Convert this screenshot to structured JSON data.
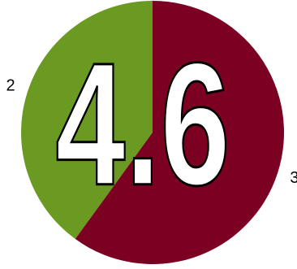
{
  "chart_data": {
    "type": "pie",
    "values": [
      2,
      3
    ],
    "colors": [
      "#6a9a22",
      "#7b0022"
    ],
    "annotation": "4.6"
  }
}
